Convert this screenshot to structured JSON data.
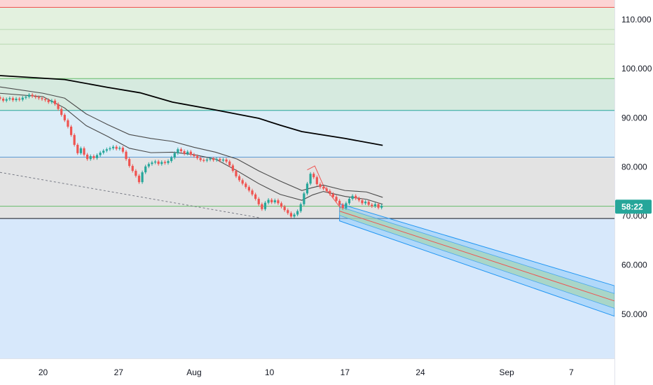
{
  "chart_data": {
    "type": "candlestick",
    "ylim": [
      41,
      114
    ],
    "xlim": [
      0,
      57
    ],
    "y_ticks": [
      {
        "value": 110,
        "label": "110.000"
      },
      {
        "value": 100,
        "label": "100.000"
      },
      {
        "value": 90,
        "label": "90.000"
      },
      {
        "value": 80,
        "label": "80.000"
      },
      {
        "value": 70,
        "label": "70.000"
      },
      {
        "value": 60,
        "label": "60.000"
      },
      {
        "value": 50,
        "label": "50.000"
      }
    ],
    "x_ticks": [
      {
        "x": 4,
        "label": "20"
      },
      {
        "x": 11,
        "label": "27"
      },
      {
        "x": 18,
        "label": "Aug"
      },
      {
        "x": 25,
        "label": "10"
      },
      {
        "x": 32,
        "label": "17"
      },
      {
        "x": 39,
        "label": "24"
      },
      {
        "x": 47,
        "label": "Sep"
      },
      {
        "x": 53,
        "label": "7"
      }
    ],
    "price_badge": {
      "value": 71.9,
      "label": "58:22",
      "color": "#26a69a"
    },
    "zones": [
      {
        "from": 112.5,
        "to": 114,
        "color": "#fcd4d4"
      },
      {
        "from": 98,
        "to": 112.5,
        "color": "#e3f1df"
      },
      {
        "from": 91.5,
        "to": 98,
        "color": "#d6eadf"
      },
      {
        "from": 82,
        "to": 91.5,
        "color": "#dcedf8"
      },
      {
        "from": 69.5,
        "to": 82,
        "color": "#e3e3e3"
      },
      {
        "from": 41,
        "to": 69.5,
        "color": "#d7e8fb"
      }
    ],
    "levels": [
      {
        "value": 112.5,
        "color": "#ef5350"
      },
      {
        "value": 108,
        "color": "#b7d9b0"
      },
      {
        "value": 105,
        "color": "#b7d9b0"
      },
      {
        "value": 98,
        "color": "#66bb6a"
      },
      {
        "value": 91.5,
        "color": "#26a69a"
      },
      {
        "value": 82,
        "color": "#5b9bd5"
      },
      {
        "value": 72,
        "color": "#66bb6a"
      },
      {
        "value": 69.5,
        "color": "#131722"
      }
    ],
    "colors": {
      "up": "#26a69a",
      "down": "#ef5350",
      "ma200": "#000000",
      "ma_env": "#4a4a4a",
      "channel": "#2196f3",
      "channel_mid": "#ef5350"
    },
    "candles": [
      [
        0.0,
        94.2,
        93.9
      ],
      [
        0.3,
        93.9,
        93.5
      ],
      [
        0.6,
        93.5,
        93.8
      ],
      [
        0.9,
        93.8,
        94.0
      ],
      [
        1.2,
        94.0,
        93.6
      ],
      [
        1.5,
        93.6,
        93.9
      ],
      [
        1.8,
        93.9,
        93.7
      ],
      [
        2.1,
        93.7,
        94.1
      ],
      [
        2.4,
        94.1,
        94.3
      ],
      [
        2.7,
        94.3,
        94.7
      ],
      [
        3.0,
        94.7,
        94.4
      ],
      [
        3.3,
        94.4,
        94.2
      ],
      [
        3.6,
        94.2,
        94.0
      ],
      [
        3.9,
        94.0,
        93.8
      ],
      [
        4.2,
        93.8,
        93.6
      ],
      [
        4.5,
        93.6,
        93.2
      ],
      [
        4.8,
        93.2,
        93.5
      ],
      [
        5.1,
        93.5,
        92.8
      ],
      [
        5.4,
        92.8,
        91.8
      ],
      [
        5.7,
        91.8,
        90.6
      ],
      [
        6.0,
        90.6,
        89.5
      ],
      [
        6.3,
        89.5,
        88.2
      ],
      [
        6.6,
        88.2,
        86.5
      ],
      [
        6.9,
        86.5,
        84.5
      ],
      [
        7.2,
        84.5,
        82.8
      ],
      [
        7.5,
        82.8,
        83.8
      ],
      [
        7.8,
        83.8,
        82.5
      ],
      [
        8.1,
        82.5,
        81.6
      ],
      [
        8.4,
        81.6,
        82.2
      ],
      [
        8.7,
        82.2,
        81.8
      ],
      [
        9.0,
        81.8,
        82.4
      ],
      [
        9.3,
        82.4,
        82.9
      ],
      [
        9.6,
        82.9,
        83.3
      ],
      [
        9.9,
        83.3,
        83.6
      ],
      [
        10.2,
        83.6,
        83.8
      ],
      [
        10.5,
        83.8,
        84.1
      ],
      [
        10.8,
        84.1,
        83.7
      ],
      [
        11.1,
        83.7,
        83.9
      ],
      [
        11.4,
        83.9,
        83.1
      ],
      [
        11.7,
        83.1,
        81.6
      ],
      [
        12.0,
        81.6,
        80.2
      ],
      [
        12.3,
        80.2,
        79.2
      ],
      [
        12.6,
        79.2,
        78.2
      ],
      [
        12.9,
        78.2,
        76.9
      ],
      [
        13.2,
        76.9,
        78.9
      ],
      [
        13.5,
        78.9,
        80.1
      ],
      [
        13.8,
        80.1,
        80.6
      ],
      [
        14.1,
        80.6,
        80.9
      ],
      [
        14.4,
        80.9,
        81.1
      ],
      [
        14.7,
        81.1,
        80.6
      ],
      [
        15.0,
        80.6,
        81.0
      ],
      [
        15.3,
        81.0,
        80.8
      ],
      [
        15.6,
        80.8,
        81.2
      ],
      [
        15.9,
        81.2,
        81.9
      ],
      [
        16.2,
        81.9,
        82.8
      ],
      [
        16.5,
        82.8,
        83.6
      ],
      [
        16.8,
        83.6,
        83.2
      ],
      [
        17.1,
        83.2,
        82.7
      ],
      [
        17.4,
        82.7,
        83.1
      ],
      [
        17.7,
        83.1,
        82.5
      ],
      [
        18.0,
        82.5,
        82.2
      ],
      [
        18.3,
        82.2,
        81.8
      ],
      [
        18.6,
        81.8,
        81.4
      ],
      [
        18.9,
        81.4,
        81.3
      ],
      [
        19.2,
        81.3,
        81.5
      ],
      [
        19.5,
        81.5,
        81.7
      ],
      [
        19.8,
        81.7,
        81.4
      ],
      [
        20.1,
        81.4,
        81.6
      ],
      [
        20.4,
        81.6,
        81.3
      ],
      [
        20.7,
        81.3,
        81.5
      ],
      [
        21.0,
        81.5,
        81.1
      ],
      [
        21.3,
        81.1,
        80.3
      ],
      [
        21.6,
        80.3,
        79.2
      ],
      [
        21.9,
        79.2,
        78.1
      ],
      [
        22.2,
        78.1,
        77.3
      ],
      [
        22.5,
        77.3,
        76.6
      ],
      [
        22.8,
        76.6,
        75.9
      ],
      [
        23.1,
        75.9,
        75.2
      ],
      [
        23.4,
        75.2,
        74.4
      ],
      [
        23.7,
        74.4,
        73.5
      ],
      [
        24.0,
        73.5,
        72.4
      ],
      [
        24.3,
        72.4,
        71.4
      ],
      [
        24.6,
        71.4,
        72.7
      ],
      [
        24.9,
        72.7,
        73.3
      ],
      [
        25.2,
        73.3,
        72.8
      ],
      [
        25.5,
        72.8,
        73.2
      ],
      [
        25.8,
        73.2,
        72.6
      ],
      [
        26.1,
        72.6,
        71.9
      ],
      [
        26.4,
        71.9,
        71.2
      ],
      [
        26.7,
        71.2,
        70.6
      ],
      [
        27.0,
        70.6,
        69.9
      ],
      [
        27.3,
        69.9,
        70.3
      ],
      [
        27.6,
        70.3,
        71.0
      ],
      [
        27.9,
        71.0,
        72.4
      ],
      [
        28.2,
        72.4,
        74.6
      ],
      [
        28.5,
        74.6,
        76.6
      ],
      [
        28.8,
        76.6,
        78.6
      ],
      [
        29.1,
        78.6,
        77.9
      ],
      [
        29.4,
        77.9,
        76.5
      ],
      [
        29.7,
        76.5,
        75.9
      ],
      [
        30.0,
        75.9,
        75.6
      ],
      [
        30.3,
        75.6,
        75.1
      ],
      [
        30.6,
        75.1,
        74.5
      ],
      [
        30.9,
        74.5,
        73.9
      ],
      [
        31.2,
        73.9,
        73.1
      ],
      [
        31.5,
        73.1,
        72.3
      ],
      [
        31.8,
        72.3,
        71.6
      ],
      [
        32.1,
        71.6,
        72.6
      ],
      [
        32.4,
        72.6,
        73.5
      ],
      [
        32.7,
        73.5,
        74.1
      ],
      [
        33.0,
        74.1,
        73.6
      ],
      [
        33.3,
        73.6,
        73.2
      ],
      [
        33.6,
        73.2,
        72.6
      ],
      [
        33.9,
        72.6,
        72.9
      ],
      [
        34.2,
        72.9,
        72.3
      ],
      [
        34.5,
        72.3,
        72.0
      ],
      [
        34.8,
        72.0,
        72.4
      ],
      [
        35.1,
        72.4,
        71.7
      ],
      [
        35.4,
        71.7,
        72.1
      ]
    ],
    "ma200": [
      [
        0,
        98.6
      ],
      [
        6,
        97.8
      ],
      [
        10,
        96.2
      ],
      [
        13,
        95.1
      ],
      [
        16,
        93.2
      ],
      [
        20,
        91.6
      ],
      [
        24,
        89.9
      ],
      [
        26,
        88.5
      ],
      [
        28,
        87.2
      ],
      [
        32,
        85.8
      ],
      [
        35.5,
        84.4
      ]
    ],
    "ma_upper": [
      [
        0,
        96.3
      ],
      [
        4,
        95.0
      ],
      [
        6,
        94.0
      ],
      [
        8,
        90.8
      ],
      [
        10,
        88.6
      ],
      [
        12,
        86.6
      ],
      [
        14,
        85.8
      ],
      [
        16,
        85.2
      ],
      [
        18,
        84.0
      ],
      [
        20,
        83.0
      ],
      [
        22,
        81.6
      ],
      [
        24,
        79.2
      ],
      [
        26,
        77.1
      ],
      [
        28,
        75.2
      ],
      [
        29,
        75.8
      ],
      [
        30,
        76.3
      ],
      [
        32,
        75.2
      ],
      [
        34,
        74.9
      ],
      [
        35.5,
        73.8
      ]
    ],
    "ma_lower": [
      [
        0,
        95.0
      ],
      [
        4,
        94.3
      ],
      [
        6,
        92.0
      ],
      [
        8,
        88.4
      ],
      [
        10,
        86.2
      ],
      [
        12,
        83.8
      ],
      [
        14,
        82.9
      ],
      [
        16,
        83.0
      ],
      [
        18,
        82.5
      ],
      [
        20,
        81.6
      ],
      [
        22,
        79.2
      ],
      [
        24,
        76.6
      ],
      [
        26,
        74.4
      ],
      [
        28,
        73.2
      ],
      [
        29,
        74.3
      ],
      [
        30,
        75.0
      ],
      [
        32,
        74.0
      ],
      [
        34,
        73.4
      ],
      [
        35.5,
        72.4
      ]
    ],
    "trend_dashed": [
      [
        0,
        78.9
      ],
      [
        24.2,
        69.6
      ]
    ],
    "projection": {
      "upper": [
        [
          31.5,
          72.5
        ],
        [
          57,
          55.8
        ]
      ],
      "lower": [
        [
          31.5,
          69.0
        ],
        [
          57,
          49.6
        ]
      ],
      "mid": [
        [
          31.5,
          71.0
        ],
        [
          57,
          52.7
        ]
      ],
      "inner_upper": [
        [
          31.5,
          71.9
        ],
        [
          57,
          54.2
        ]
      ],
      "inner_lower": [
        [
          31.5,
          70.1
        ],
        [
          57,
          51.2
        ]
      ]
    },
    "pitch": [
      [
        28.5,
        79.4
      ],
      [
        29.2,
        80.2
      ],
      [
        30.0,
        76.2
      ],
      [
        31.6,
        71.6
      ]
    ]
  }
}
